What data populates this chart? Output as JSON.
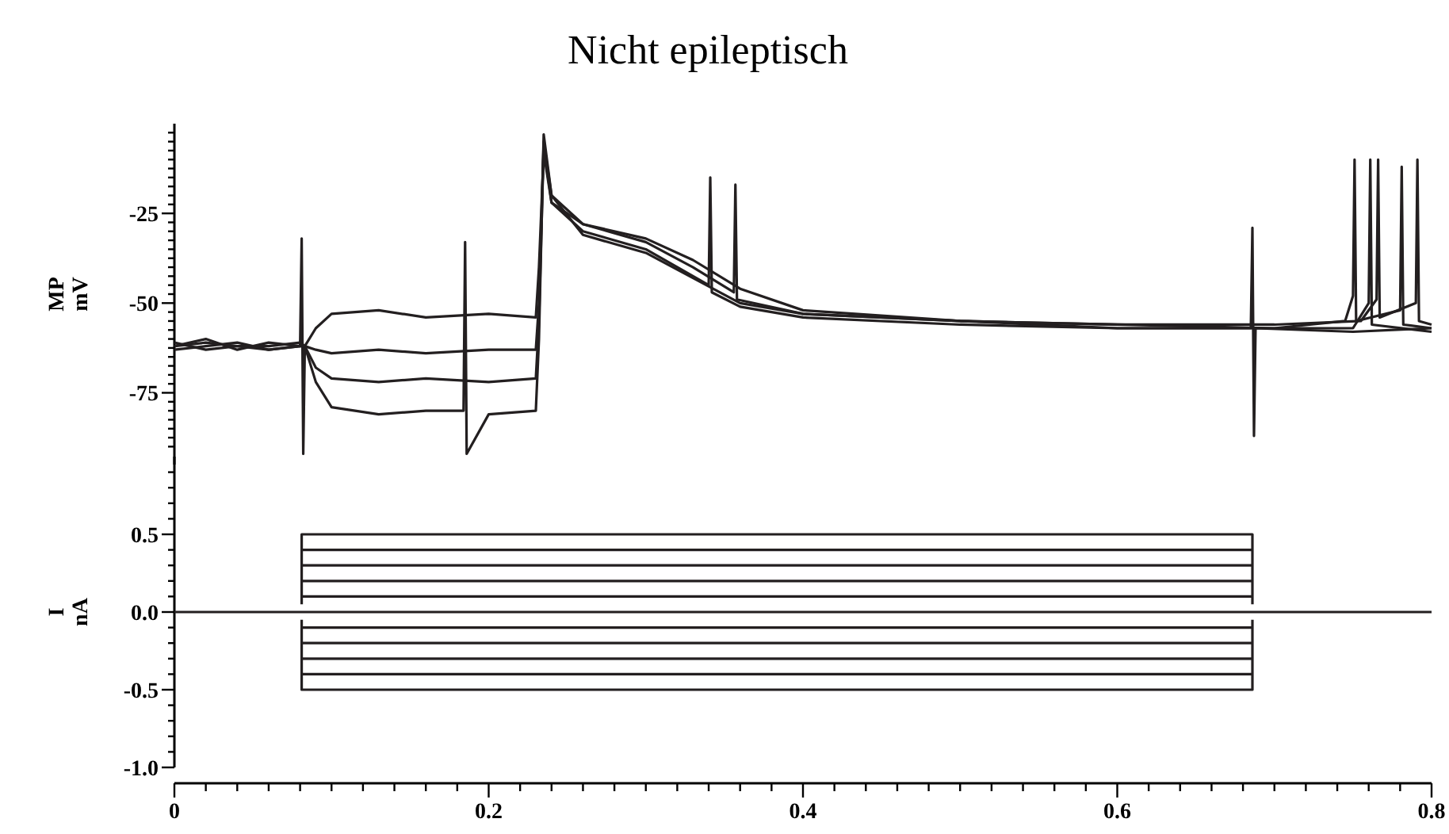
{
  "chart_data": [
    {
      "type": "line",
      "title": "Nicht epileptisch",
      "ylabel": "MP mV",
      "xlim": [
        0,
        0.8
      ],
      "ylim": [
        -95,
        0
      ],
      "tick_labels": "y",
      "grid": false,
      "marker": "none",
      "line_style": "solid",
      "yticks": [
        {
          "value": -90,
          "label": null
        },
        {
          "value": -87.5,
          "label": null
        },
        {
          "value": -85,
          "label": null
        },
        {
          "value": -82.5,
          "label": null
        },
        {
          "value": -80,
          "label": null
        },
        {
          "value": -77.5,
          "label": null
        },
        -75,
        {
          "value": -72.5,
          "label": null
        },
        {
          "value": -70,
          "label": null
        },
        {
          "value": -67.5,
          "label": null
        },
        {
          "value": -65,
          "label": null
        },
        {
          "value": -62.5,
          "label": null
        },
        {
          "value": -60,
          "label": null
        },
        {
          "value": -57.5,
          "label": null
        },
        {
          "value": -55,
          "label": null
        },
        {
          "value": -52.5,
          "label": null
        },
        -50,
        {
          "value": -47.5,
          "label": null
        },
        {
          "value": -45,
          "label": null
        },
        {
          "value": -42.5,
          "label": null
        },
        {
          "value": -40,
          "label": null
        },
        {
          "value": -37.5,
          "label": null
        },
        {
          "value": -35,
          "label": null
        },
        {
          "value": -32.5,
          "label": null
        },
        {
          "value": -30,
          "label": null
        },
        {
          "value": -27.5,
          "label": null
        },
        -25,
        {
          "value": -22.5,
          "label": null
        },
        {
          "value": -20,
          "label": null
        },
        {
          "value": -17.5,
          "label": null
        },
        {
          "value": -15,
          "label": null
        },
        {
          "value": -12.5,
          "label": null
        },
        {
          "value": -10,
          "label": null
        },
        {
          "value": -7.5,
          "label": null
        },
        {
          "value": -5,
          "label": null
        },
        {
          "value": -2.5,
          "label": null
        }
      ],
      "series": [
        {
          "color": "#231f20",
          "x": [
            0,
            0.02,
            0.04,
            0.06,
            0.08,
            0.081,
            0.082,
            0.083,
            0.09,
            0.1,
            0.13,
            0.16,
            0.184,
            0.185,
            0.186,
            0.2,
            0.23,
            0.232,
            0.235,
            0.24,
            0.26,
            0.3,
            0.33,
            0.36,
            0.4,
            0.5,
            0.6,
            0.685,
            0.686,
            0.687,
            0.688,
            0.75,
            0.8
          ],
          "values": [
            -62,
            -60,
            -63,
            -61,
            -62,
            -32,
            -92,
            -62,
            -72,
            -79,
            -81,
            -80,
            -80,
            -33,
            -92,
            -81,
            -80,
            -60,
            -3,
            -20,
            -31,
            -36,
            -43,
            -50,
            -53,
            -55,
            -57,
            -57,
            -29,
            -87,
            -57,
            -58,
            -57
          ]
        },
        {
          "color": "#231f20",
          "x": [
            0,
            0.02,
            0.04,
            0.06,
            0.08,
            0.083,
            0.09,
            0.1,
            0.13,
            0.16,
            0.2,
            0.23,
            0.232,
            0.235,
            0.24,
            0.26,
            0.3,
            0.34,
            0.341,
            0.342,
            0.36,
            0.4,
            0.5,
            0.6,
            0.7,
            0.75,
            0.76,
            0.761,
            0.762,
            0.8
          ],
          "values": [
            -63,
            -62,
            -61,
            -63,
            -62,
            -62,
            -68,
            -71,
            -72,
            -71,
            -72,
            -71,
            -55,
            -6,
            -22,
            -30,
            -35,
            -45,
            -15,
            -47,
            -51,
            -54,
            -56,
            -57,
            -57,
            -57,
            -50,
            -10,
            -56,
            -58
          ]
        },
        {
          "color": "#231f20",
          "x": [
            0,
            0.02,
            0.04,
            0.06,
            0.08,
            0.083,
            0.09,
            0.1,
            0.13,
            0.16,
            0.2,
            0.23,
            0.232,
            0.235,
            0.24,
            0.26,
            0.3,
            0.33,
            0.356,
            0.357,
            0.358,
            0.4,
            0.5,
            0.6,
            0.7,
            0.745,
            0.75,
            0.751,
            0.752,
            0.78,
            0.781,
            0.782,
            0.8
          ],
          "values": [
            -61,
            -63,
            -62,
            -62,
            -61,
            -62,
            -63,
            -64,
            -63,
            -64,
            -63,
            -63,
            -50,
            -5,
            -20,
            -28,
            -33,
            -40,
            -47,
            -17,
            -49,
            -53,
            -55,
            -56,
            -57,
            -55,
            -48,
            -10,
            -55,
            -52,
            -12,
            -56,
            -57
          ]
        },
        {
          "color": "#231f20",
          "x": [
            0,
            0.02,
            0.04,
            0.06,
            0.08,
            0.083,
            0.09,
            0.1,
            0.13,
            0.16,
            0.2,
            0.23,
            0.232,
            0.235,
            0.24,
            0.26,
            0.3,
            0.33,
            0.36,
            0.4,
            0.5,
            0.6,
            0.7,
            0.755,
            0.765,
            0.766,
            0.767,
            0.79,
            0.791,
            0.792,
            0.8
          ],
          "values": [
            -62,
            -61,
            -62,
            -63,
            -62,
            -62,
            -57,
            -53,
            -52,
            -54,
            -53,
            -54,
            -40,
            -8,
            -22,
            -28,
            -32,
            -38,
            -46,
            -52,
            -55,
            -56,
            -56,
            -55,
            -49,
            -10,
            -54,
            -50,
            -10,
            -55,
            -56
          ]
        }
      ]
    },
    {
      "type": "line",
      "ylabel": "I nA",
      "xlim": [
        0,
        0.8
      ],
      "ylim": [
        -1,
        1
      ],
      "grid": false,
      "marker": "none",
      "line_style": "solid",
      "xticks": [
        0,
        {
          "value": 0.02,
          "label": null
        },
        {
          "value": 0.04,
          "label": null
        },
        {
          "value": 0.06,
          "label": null
        },
        {
          "value": 0.08,
          "label": null
        },
        {
          "value": 0.1,
          "label": null
        },
        {
          "value": 0.12,
          "label": null
        },
        {
          "value": 0.14,
          "label": null
        },
        {
          "value": 0.16,
          "label": null
        },
        {
          "value": 0.18,
          "label": null
        },
        0.2,
        {
          "value": 0.22,
          "label": null
        },
        {
          "value": 0.24,
          "label": null
        },
        {
          "value": 0.26,
          "label": null
        },
        {
          "value": 0.28,
          "label": null
        },
        {
          "value": 0.3,
          "label": null
        },
        {
          "value": 0.32,
          "label": null
        },
        {
          "value": 0.34,
          "label": null
        },
        {
          "value": 0.36,
          "label": null
        },
        {
          "value": 0.38,
          "label": null
        },
        0.4,
        {
          "value": 0.42,
          "label": null
        },
        {
          "value": 0.44,
          "label": null
        },
        {
          "value": 0.46,
          "label": null
        },
        {
          "value": 0.48,
          "label": null
        },
        {
          "value": 0.5,
          "label": null
        },
        {
          "value": 0.52,
          "label": null
        },
        {
          "value": 0.54,
          "label": null
        },
        {
          "value": 0.56,
          "label": null
        },
        {
          "value": 0.58,
          "label": null
        },
        0.6,
        {
          "value": 0.62,
          "label": null
        },
        {
          "value": 0.64,
          "label": null
        },
        {
          "value": 0.66,
          "label": null
        },
        {
          "value": 0.68,
          "label": null
        },
        {
          "value": 0.7,
          "label": null
        },
        {
          "value": 0.72,
          "label": null
        },
        {
          "value": 0.74,
          "label": null
        },
        {
          "value": 0.76,
          "label": null
        },
        {
          "value": 0.78,
          "label": null
        },
        0.8
      ],
      "yticks": [
        {
          "value": -1,
          "label": "-1.0"
        },
        {
          "value": -0.9,
          "label": null
        },
        {
          "value": -0.8,
          "label": null
        },
        {
          "value": -0.7,
          "label": null
        },
        {
          "value": -0.6,
          "label": null
        },
        -0.5,
        {
          "value": -0.4,
          "label": null
        },
        {
          "value": -0.3,
          "label": null
        },
        {
          "value": -0.2,
          "label": null
        },
        {
          "value": -0.1,
          "label": null
        },
        {
          "value": 0,
          "label": "0.0"
        },
        {
          "value": 0.1,
          "label": null
        },
        {
          "value": 0.2,
          "label": null
        },
        {
          "value": 0.3,
          "label": null
        },
        {
          "value": 0.4,
          "label": null
        },
        0.5,
        {
          "value": 0.6,
          "label": null
        },
        {
          "value": 0.7,
          "label": null
        },
        {
          "value": 0.8,
          "label": null
        },
        {
          "value": 0.9,
          "label": null
        }
      ],
      "series": [
        {
          "color": "#231f20",
          "x": [
            0.081,
            0.081,
            0.686,
            0.686
          ],
          "values": [
            -0.05,
            -0.5,
            -0.5,
            -0.05
          ]
        },
        {
          "color": "#231f20",
          "x": [
            0.081,
            0.686
          ],
          "values": [
            -0.4,
            -0.4
          ]
        },
        {
          "color": "#231f20",
          "x": [
            0.081,
            0.686
          ],
          "values": [
            -0.3,
            -0.3
          ]
        },
        {
          "color": "#231f20",
          "x": [
            0.081,
            0.686
          ],
          "values": [
            -0.2,
            -0.2
          ]
        },
        {
          "color": "#231f20",
          "x": [
            0.081,
            0.686
          ],
          "values": [
            -0.1,
            -0.1
          ]
        },
        {
          "color": "#231f20",
          "x": [
            0,
            0.8
          ],
          "values": [
            0,
            0
          ]
        },
        {
          "color": "#231f20",
          "x": [
            0.081,
            0.686
          ],
          "values": [
            0.1,
            0.1
          ]
        },
        {
          "color": "#231f20",
          "x": [
            0.081,
            0.686
          ],
          "values": [
            0.2,
            0.2
          ]
        },
        {
          "color": "#231f20",
          "x": [
            0.081,
            0.686
          ],
          "values": [
            0.3,
            0.3
          ]
        },
        {
          "color": "#231f20",
          "x": [
            0.081,
            0.686
          ],
          "values": [
            0.4,
            0.4
          ]
        },
        {
          "color": "#231f20",
          "x": [
            0.081,
            0.081,
            0.686,
            0.686
          ],
          "values": [
            0.05,
            0.5,
            0.5,
            0.05
          ]
        }
      ]
    }
  ]
}
